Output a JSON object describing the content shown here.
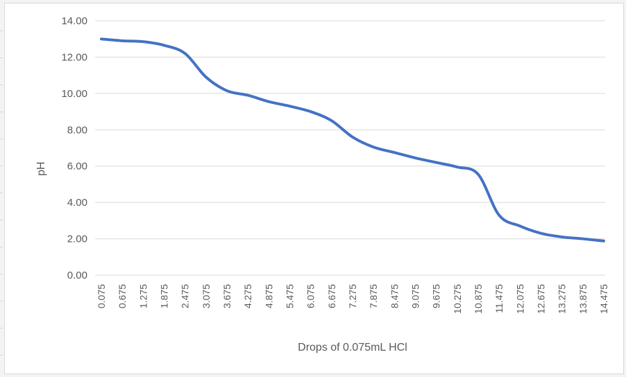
{
  "chart_data": {
    "type": "line",
    "xlabel": "Drops of 0.075mL HCl",
    "ylabel": "pH",
    "ylim": [
      0,
      14
    ],
    "yticks": [
      "0.00",
      "2.00",
      "4.00",
      "6.00",
      "8.00",
      "10.00",
      "12.00",
      "14.00"
    ],
    "grid": "horizontal",
    "series_color": "#4472C4",
    "x": [
      "0.075",
      "0.675",
      "1.275",
      "1.875",
      "2.475",
      "3.075",
      "3.675",
      "4.275",
      "4.875",
      "5.475",
      "6.075",
      "6.675",
      "7.275",
      "7.875",
      "8.475",
      "9.075",
      "9.675",
      "10.275",
      "10.875",
      "11.475",
      "12.075",
      "12.675",
      "13.275",
      "13.875",
      "14.475"
    ],
    "series": [
      {
        "values": [
          13.0,
          12.9,
          12.85,
          12.65,
          12.2,
          10.9,
          10.15,
          9.9,
          9.55,
          9.3,
          9.0,
          8.5,
          7.6,
          7.05,
          6.75,
          6.45,
          6.2,
          5.95,
          5.55,
          3.3,
          2.7,
          2.3,
          2.1,
          2.0,
          1.88
        ]
      }
    ]
  }
}
